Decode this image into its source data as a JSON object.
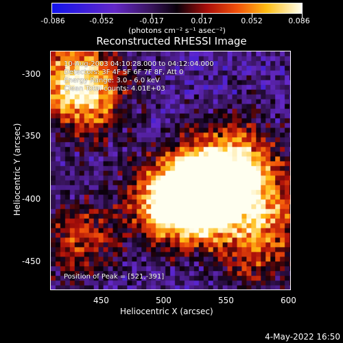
{
  "colorbar": {
    "tick_labels": [
      "-0.086",
      "-0.052",
      "-0.017",
      "0.017",
      "0.052",
      "0.086"
    ],
    "unit_label": "(photons cm⁻² s⁻¹ asec⁻²)"
  },
  "title": "Reconstructed RHESSI Image",
  "annotations": {
    "time_range": "10-Aug-2003 04:10:28.000 to 04:12:04.000",
    "detectors": "Detectors: 3F 4F 5F 6F 7F 8F, Att 0",
    "energy_range": "Energy Range: 3.0 - 6.0 keV",
    "method": "Clean    Total counts: 4.01E+03",
    "peak_position": "Position of Peak = [521,-391]"
  },
  "axes": {
    "xlabel": "Heliocentric X (arcsec)",
    "ylabel": "Heliocentric Y (arcsec)",
    "xticks": [
      "450",
      "500",
      "550",
      "600"
    ],
    "yticks": [
      "-300",
      "-350",
      "-400",
      "-450"
    ]
  },
  "footer_date": "4-May-2022 16:50",
  "chart_data": {
    "type": "heatmap",
    "title": "Reconstructed RHESSI Image",
    "xlabel": "Heliocentric X (arcsec)",
    "ylabel": "Heliocentric Y (arcsec)",
    "xlim": [
      410,
      601
    ],
    "ylim": [
      -473,
      -282
    ],
    "colorbar_range": [
      -0.086,
      0.086
    ],
    "colormap": "blue-purple-red-yellow-white",
    "peak": {
      "x": 521,
      "y": -391
    },
    "bright_regions": [
      {
        "x": 521,
        "y": -391,
        "relative_intensity": 1.0
      },
      {
        "x": 535,
        "y": -400,
        "relative_intensity": 0.9
      },
      {
        "x": 555,
        "y": -368,
        "relative_intensity": 0.8
      },
      {
        "x": 500,
        "y": -405,
        "relative_intensity": 0.75
      },
      {
        "x": 425,
        "y": -300,
        "relative_intensity": 0.75
      },
      {
        "x": 440,
        "y": -320,
        "relative_intensity": 0.6
      },
      {
        "x": 575,
        "y": -440,
        "relative_intensity": 0.5
      },
      {
        "x": 430,
        "y": -430,
        "relative_intensity": 0.55
      },
      {
        "x": 580,
        "y": -400,
        "relative_intensity": 0.55
      }
    ]
  }
}
